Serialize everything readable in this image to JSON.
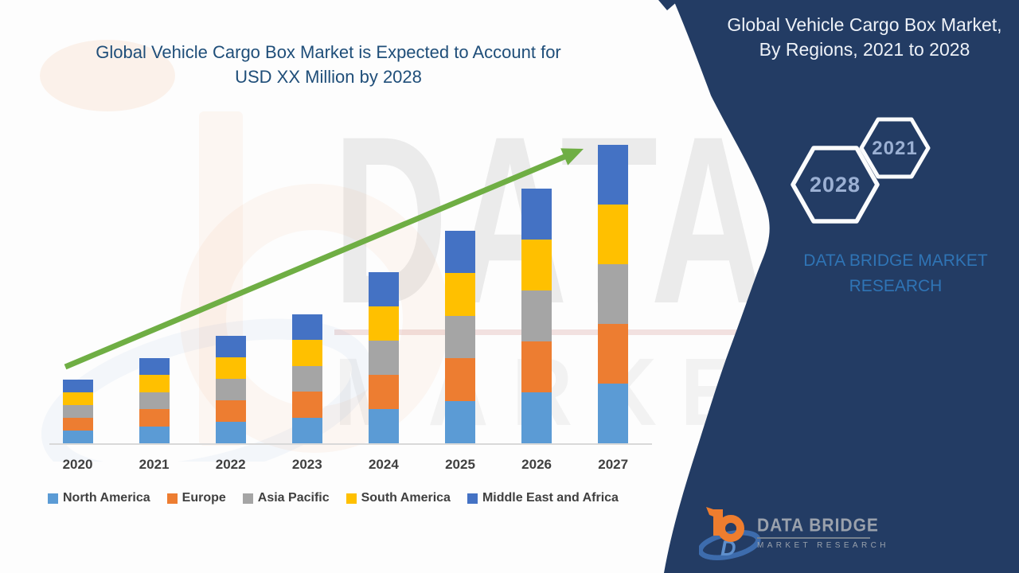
{
  "chart": {
    "title_line1": "Global Vehicle Cargo Box Market is Expected to Account for",
    "title_line2": "USD XX Million by 2028"
  },
  "chart_data": {
    "type": "bar",
    "stacked": true,
    "title": "Global Vehicle Cargo Box Market is Expected to Account for USD XX Million by 2028",
    "categories": [
      "2020",
      "2021",
      "2022",
      "2023",
      "2024",
      "2025",
      "2026",
      "2027"
    ],
    "series": [
      {
        "name": "North America",
        "color": "#5B9BD5",
        "values": [
          16,
          21.5,
          27,
          32.5,
          43,
          53.5,
          64,
          75
        ]
      },
      {
        "name": "Europe",
        "color": "#ED7D31",
        "values": [
          16,
          21.5,
          27,
          32.5,
          43,
          53.5,
          64,
          75
        ]
      },
      {
        "name": "Asia Pacific",
        "color": "#A5A5A5",
        "values": [
          16,
          21.5,
          27,
          32.5,
          43,
          53.5,
          64,
          75
        ]
      },
      {
        "name": "South America",
        "color": "#FFC000",
        "values": [
          16,
          21.5,
          27,
          32.5,
          43,
          53.5,
          64,
          75
        ]
      },
      {
        "name": "Middle East and Africa",
        "color": "#4472C4",
        "values": [
          16,
          21.5,
          27,
          32.5,
          43,
          53.5,
          64,
          75
        ]
      }
    ],
    "stack_totals_relative": [
      80,
      107.5,
      135,
      162.5,
      215,
      267.5,
      320,
      375
    ],
    "unit": "relative height (actual values shown as USD XX Million)",
    "value_axis": "hidden",
    "xlabel": "",
    "ylabel": "",
    "grid": false,
    "legend_position": "bottom",
    "annotations": [
      "green upward straight trend arrow from 2020 to 2027 bar top"
    ]
  },
  "watermark": {
    "big_text": "DATA BRIDGE",
    "sub_text": "MARKET RESEARCH"
  },
  "right_panel": {
    "title_line1": "Global Vehicle Cargo Box Market,",
    "title_line2": "By Regions, 2021 to 2028",
    "badge_back": "2021",
    "badge_front": "2028",
    "brand_line1": "DATA BRIDGE MARKET",
    "brand_line2": "RESEARCH"
  },
  "footer_logo": {
    "name": "DATA BRIDGE",
    "tagline": "MARKET RESEARCH"
  },
  "colors": {
    "panel_navy": "#233C64",
    "chart_title_blue": "#1F4E79",
    "arrow_green": "#6FAE44",
    "axis_text_gray": "#404040",
    "brand_blue": "#2F74B5",
    "badge_text": "#9BB0D3",
    "hexagon_stroke": "#FAFBFC"
  }
}
